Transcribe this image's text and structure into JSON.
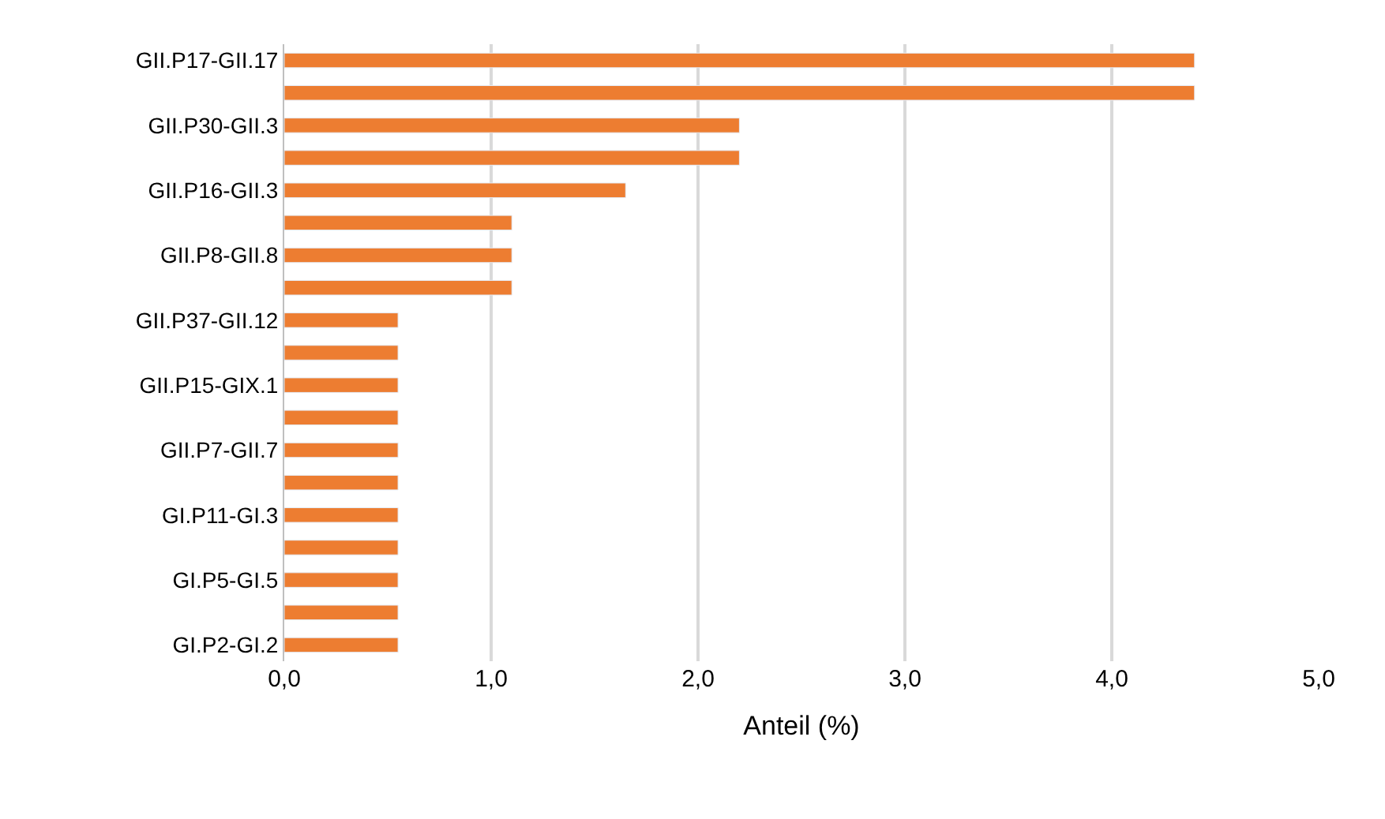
{
  "chart_data": {
    "type": "bar",
    "orientation": "horizontal",
    "xlabel": "Anteil (%)",
    "categories": [
      "GII.P17-GII.17",
      null,
      "GII.P30-GII.3",
      null,
      "GII.P16-GII.3",
      null,
      "GII.P8-GII.8",
      null,
      "GII.P37-GII.12",
      null,
      "GII.P15-GIX.1",
      null,
      "GII.P7-GII.7",
      null,
      "GI.P11-GI.3",
      null,
      "GI.P5-GI.5",
      null,
      "GI.P2-GI.2"
    ],
    "values": [
      4.4,
      4.4,
      2.2,
      2.2,
      1.65,
      1.1,
      1.1,
      1.1,
      0.55,
      0.55,
      0.55,
      0.55,
      0.55,
      0.55,
      0.55,
      0.55,
      0.55,
      0.55,
      0.55
    ],
    "color": "#ed7d31",
    "xlim": [
      0,
      5
    ],
    "xticks": [
      {
        "value": 0,
        "label": "0,0"
      },
      {
        "value": 1,
        "label": "1,0"
      },
      {
        "value": 2,
        "label": "2,0"
      },
      {
        "value": 3,
        "label": "3,0"
      },
      {
        "value": 4,
        "label": "4,0"
      },
      {
        "value": 5,
        "label": "5,0"
      }
    ],
    "grid": "x",
    "legend": false
  }
}
